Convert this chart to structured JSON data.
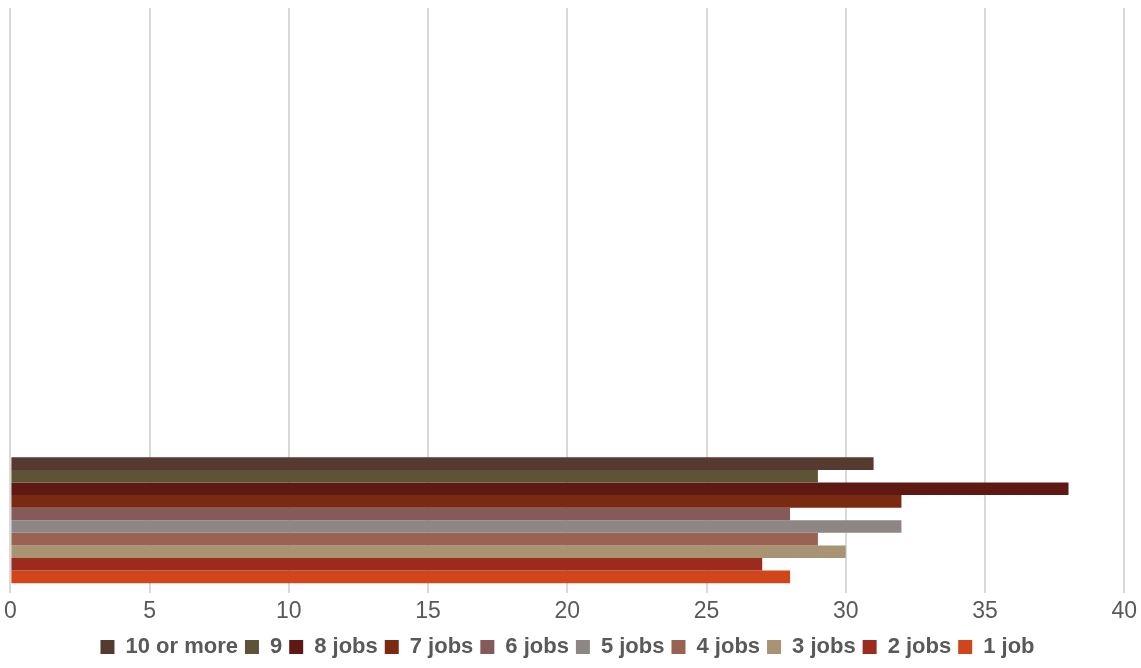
{
  "chart_data": {
    "type": "bar",
    "orientation": "horizontal",
    "categories": [
      null,
      null,
      null,
      null
    ],
    "series": [
      {
        "name": "10 or more",
        "color": "#553a30",
        "values": [
          null,
          null,
          null,
          31
        ]
      },
      {
        "name": "9",
        "color": "#5f5337",
        "values": [
          null,
          null,
          null,
          29
        ]
      },
      {
        "name": "8 jobs",
        "color": "#5e1a12",
        "values": [
          null,
          null,
          null,
          38
        ]
      },
      {
        "name": "7 jobs",
        "color": "#7a2a10",
        "values": [
          null,
          null,
          null,
          32
        ]
      },
      {
        "name": "6 jobs",
        "color": "#845b59",
        "values": [
          null,
          null,
          null,
          28
        ]
      },
      {
        "name": "5 jobs",
        "color": "#8e8585",
        "values": [
          null,
          null,
          null,
          32
        ]
      },
      {
        "name": "4 jobs",
        "color": "#9a6250",
        "values": [
          null,
          null,
          null,
          29
        ]
      },
      {
        "name": "3 jobs",
        "color": "#a89472",
        "values": [
          null,
          null,
          null,
          30
        ]
      },
      {
        "name": "2 jobs",
        "color": "#9b2b1e",
        "values": [
          null,
          null,
          null,
          27
        ]
      },
      {
        "name": "1 job",
        "color": "#d04519",
        "values": [
          null,
          null,
          null,
          28
        ]
      }
    ],
    "xlim": [
      0,
      40
    ],
    "xticks": [
      0,
      5,
      10,
      15,
      20,
      25,
      30,
      35,
      40
    ],
    "grid": "x",
    "legend": "bottom",
    "tick_labels": "x"
  }
}
